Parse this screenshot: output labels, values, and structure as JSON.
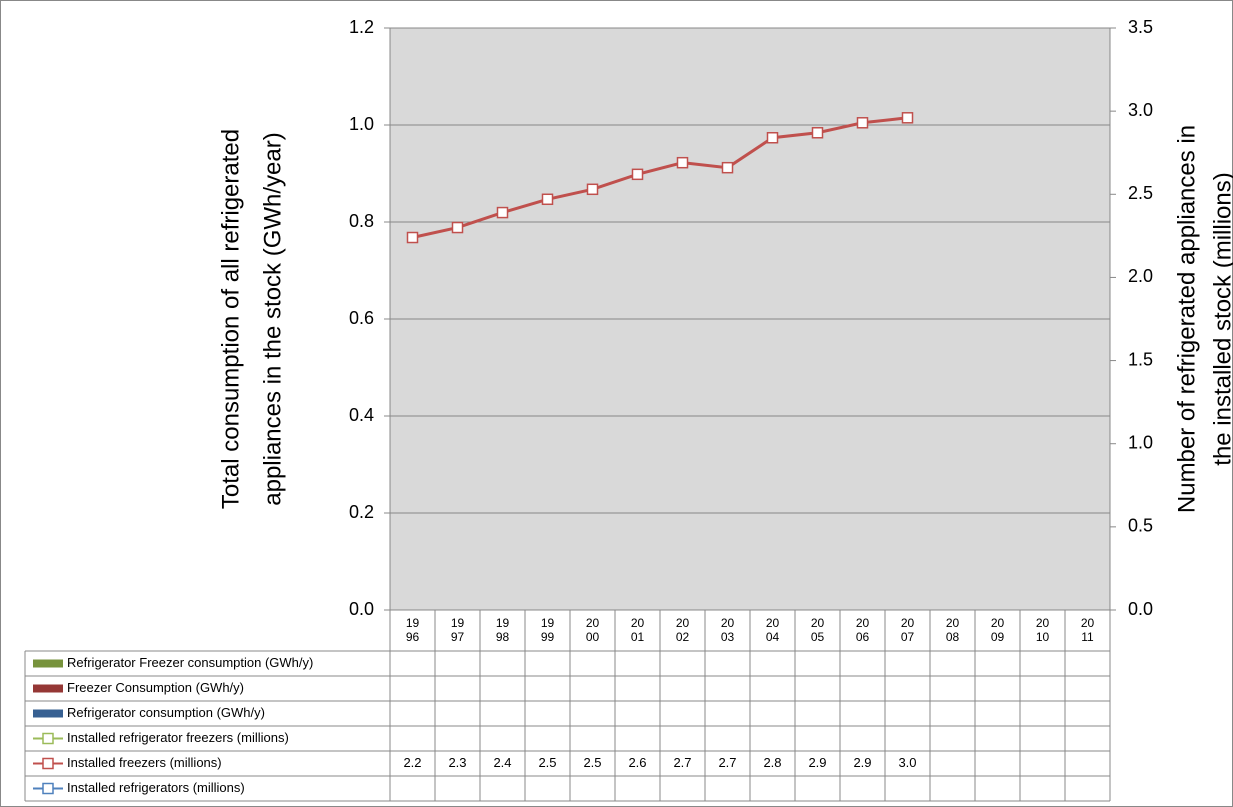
{
  "chart_data": {
    "type": "line",
    "ylabel": [
      "Total consumption of all refrigerated",
      "appliances in the stock (GWh/year)"
    ],
    "y2label": [
      "Number of refrigerated appliances in",
      "the installed stock (millions)"
    ],
    "categories": [
      "1996",
      "1997",
      "1998",
      "1999",
      "2000",
      "2001",
      "2002",
      "2003",
      "2004",
      "2005",
      "2006",
      "2007",
      "2008",
      "2009",
      "2010",
      "2011"
    ],
    "ylim": [
      0,
      1.2
    ],
    "yticks": [
      {
        "value": 0,
        "label": "0.0"
      },
      {
        "value": 0.2,
        "label": "0.2"
      },
      {
        "value": 0.4,
        "label": "0.4"
      },
      {
        "value": 0.6,
        "label": "0.6"
      },
      {
        "value": 0.8,
        "label": "0.8"
      },
      {
        "value": 1,
        "label": "1.0"
      },
      {
        "value": 1.2,
        "label": "1.2"
      }
    ],
    "y2lim": [
      0,
      3.5
    ],
    "y2ticks": [
      {
        "value": 0,
        "label": "0.0"
      },
      {
        "value": 0.5,
        "label": "0.5"
      },
      {
        "value": 1,
        "label": "1.0"
      },
      {
        "value": 1.5,
        "label": "1.5"
      },
      {
        "value": 2,
        "label": "2.0"
      },
      {
        "value": 2.5,
        "label": "2.5"
      },
      {
        "value": 3,
        "label": "3.0"
      },
      {
        "value": 3.5,
        "label": "3.5"
      }
    ],
    "grid": true,
    "series": [
      {
        "name": "Refrigerator Freezer  consumption (GWh/y)",
        "type": "bar",
        "color": "#77933c",
        "values": [
          null,
          null,
          null,
          null,
          null,
          null,
          null,
          null,
          null,
          null,
          null,
          null,
          null,
          null,
          null,
          null
        ]
      },
      {
        "name": "Freezer Consumption (GWh/y)",
        "type": "bar",
        "color": "#953735",
        "values": [
          null,
          null,
          null,
          null,
          null,
          null,
          null,
          null,
          null,
          null,
          null,
          null,
          null,
          null,
          null,
          null
        ]
      },
      {
        "name": "Refrigerator consumption (GWh/y)",
        "type": "bar",
        "color": "#376092",
        "values": [
          null,
          null,
          null,
          null,
          null,
          null,
          null,
          null,
          null,
          null,
          null,
          null,
          null,
          null,
          null,
          null
        ]
      },
      {
        "name": "Installed refrigerator freezers (millions)",
        "type": "line",
        "axis": "y2",
        "color": "#9bbb59",
        "values": [
          null,
          null,
          null,
          null,
          null,
          null,
          null,
          null,
          null,
          null,
          null,
          null,
          null,
          null,
          null,
          null
        ]
      },
      {
        "name": "Installed freezers (millions)",
        "type": "line",
        "axis": "y2",
        "color": "#c0504d",
        "values": [
          2.24,
          2.3,
          2.39,
          2.47,
          2.53,
          2.62,
          2.69,
          2.66,
          2.84,
          2.87,
          2.93,
          2.96,
          null,
          null,
          null,
          null
        ],
        "value_labels": [
          "2.2",
          "2.3",
          "2.4",
          "2.5",
          "2.5",
          "2.6",
          "2.7",
          "2.7",
          "2.8",
          "2.9",
          "2.9",
          "3.0",
          null,
          null,
          null,
          null
        ]
      },
      {
        "name": "Installed refrigerators (millions)",
        "type": "line",
        "axis": "y2",
        "color": "#4f81bd",
        "values": [
          null,
          null,
          null,
          null,
          null,
          null,
          null,
          null,
          null,
          null,
          null,
          null,
          null,
          null,
          null,
          null
        ]
      }
    ]
  }
}
